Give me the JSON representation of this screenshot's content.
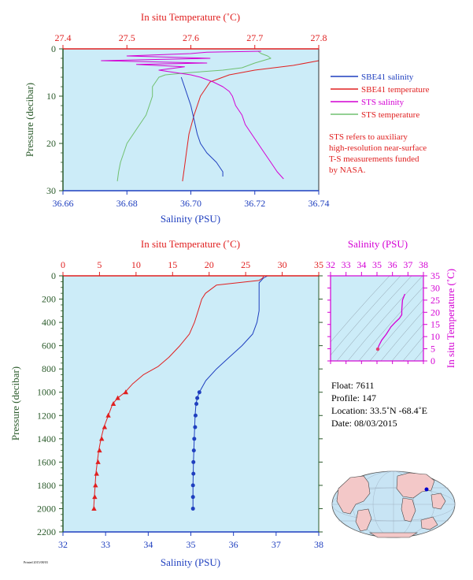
{
  "chart_data": [
    {
      "type": "line",
      "panel": "upper",
      "top_axis": {
        "label": "In situ Temperature (˚C)",
        "range": [
          27.4,
          27.8
        ],
        "ticks": [
          "27.4",
          "27.5",
          "27.6",
          "27.7",
          "27.8"
        ]
      },
      "bottom_axis": {
        "label": "Salinity (PSU)",
        "range": [
          36.66,
          36.74
        ],
        "ticks": [
          "36.66",
          "36.68",
          "36.70",
          "36.72",
          "36.74"
        ]
      },
      "left_axis": {
        "label": "Pressure (decibar)",
        "range": [
          0,
          30
        ],
        "inverted": true,
        "ticks": [
          "0",
          "10",
          "20",
          "30"
        ]
      },
      "legend_placement": "right",
      "series": [
        {
          "name": "SBE41 salinity",
          "color": "#1f3fbf",
          "axis": "salinity",
          "points": [
            [
              36.697,
              6
            ],
            [
              36.698,
              8
            ],
            [
              36.7,
              12
            ],
            [
              36.701,
              15
            ],
            [
              36.702,
              18
            ],
            [
              36.703,
              20
            ],
            [
              36.705,
              22
            ],
            [
              36.708,
              24
            ],
            [
              36.71,
              26
            ],
            [
              36.71,
              27
            ]
          ]
        },
        {
          "name": "SBE41 temperature",
          "color": "#e02020",
          "axis": "temperature",
          "points": [
            [
              27.83,
              2.5
            ],
            [
              27.76,
              3.5
            ],
            [
              27.7,
              4.5
            ],
            [
              27.66,
              5.5
            ],
            [
              27.63,
              7
            ],
            [
              27.615,
              10
            ],
            [
              27.605,
              14
            ],
            [
              27.597,
              18
            ],
            [
              27.593,
              22
            ],
            [
              27.59,
              25
            ],
            [
              27.587,
              28
            ]
          ]
        },
        {
          "name": "STS salinity",
          "color": "#d400d4",
          "axis": "salinity",
          "points": [
            [
              36.722,
              0.5
            ],
            [
              36.705,
              0.7
            ],
            [
              36.7,
              1
            ],
            [
              36.68,
              1.5
            ],
            [
              36.706,
              2
            ],
            [
              36.672,
              2.5
            ],
            [
              36.705,
              3
            ],
            [
              36.683,
              3.3
            ],
            [
              36.698,
              3.8
            ],
            [
              36.69,
              4.5
            ],
            [
              36.695,
              5
            ],
            [
              36.7,
              5.5
            ],
            [
              36.703,
              6
            ],
            [
              36.707,
              7
            ],
            [
              36.71,
              8
            ],
            [
              36.712,
              9
            ],
            [
              36.713,
              10
            ],
            [
              36.714,
              12
            ],
            [
              36.716,
              14
            ],
            [
              36.717,
              16
            ],
            [
              36.719,
              18
            ],
            [
              36.721,
              20
            ],
            [
              36.723,
              22
            ],
            [
              36.725,
              24
            ],
            [
              36.727,
              26
            ],
            [
              36.729,
              27.5
            ]
          ]
        },
        {
          "name": "STS temperature",
          "color": "#70c070",
          "axis": "temperature",
          "points": [
            [
              27.705,
              0.5
            ],
            [
              27.71,
              1
            ],
            [
              27.72,
              1.5
            ],
            [
              27.725,
              2
            ],
            [
              27.7,
              3
            ],
            [
              27.68,
              4
            ],
            [
              27.65,
              4.5
            ],
            [
              27.6,
              5
            ],
            [
              27.56,
              5.5
            ],
            [
              27.55,
              6
            ],
            [
              27.54,
              8
            ],
            [
              27.54,
              10
            ],
            [
              27.535,
              12
            ],
            [
              27.53,
              14
            ],
            [
              27.52,
              16
            ],
            [
              27.51,
              18
            ],
            [
              27.5,
              20
            ],
            [
              27.495,
              22
            ],
            [
              27.49,
              24
            ],
            [
              27.487,
              26
            ],
            [
              27.485,
              28
            ]
          ]
        }
      ],
      "annotation": [
        "STS refers to auxiliary",
        "high-resolution near-surface",
        "T-S measurements funded",
        "by NASA."
      ]
    },
    {
      "type": "line",
      "panel": "lower",
      "top_axis": {
        "label": "In situ Temperature (˚C)",
        "range": [
          0,
          35
        ],
        "ticks": [
          "0",
          "5",
          "10",
          "15",
          "20",
          "25",
          "30",
          "35"
        ]
      },
      "bottom_axis": {
        "label": "Salinity (PSU)",
        "range": [
          32,
          38
        ],
        "ticks": [
          "32",
          "33",
          "34",
          "35",
          "36",
          "37",
          "38"
        ]
      },
      "left_axis": {
        "label": "Pressure (decibar)",
        "range": [
          0,
          2200
        ],
        "inverted": true,
        "ticks": [
          "0",
          "200",
          "400",
          "600",
          "800",
          "1000",
          "1200",
          "1400",
          "1600",
          "1800",
          "2000",
          "2200"
        ]
      },
      "series": [
        {
          "name": "",
          "color": "#e02020",
          "axis": "temperature",
          "points": [
            [
              27.5,
              0
            ],
            [
              27.3,
              20
            ],
            [
              26.8,
              40
            ],
            [
              21,
              80
            ],
            [
              19.5,
              150
            ],
            [
              19,
              200
            ],
            [
              18.5,
              300
            ],
            [
              18,
              400
            ],
            [
              17.3,
              500
            ],
            [
              16,
              600
            ],
            [
              14.5,
              700
            ],
            [
              13,
              780
            ],
            [
              11,
              850
            ],
            [
              9.5,
              930
            ],
            [
              8.5,
              1000
            ],
            [
              7.5,
              1050
            ],
            [
              6.8,
              1100
            ],
            [
              6.2,
              1200
            ],
            [
              5.6,
              1300
            ],
            [
              5.2,
              1400
            ],
            [
              4.9,
              1500
            ],
            [
              4.7,
              1600
            ],
            [
              4.5,
              1700
            ],
            [
              4.4,
              1800
            ],
            [
              4.3,
              1900
            ],
            [
              4.2,
              2000
            ]
          ],
          "markers": [
            [
              8.6,
              1000
            ],
            [
              7.5,
              1050
            ],
            [
              6.9,
              1100
            ],
            [
              6.2,
              1200
            ],
            [
              5.7,
              1300
            ],
            [
              5.3,
              1400
            ],
            [
              5.0,
              1500
            ],
            [
              4.8,
              1600
            ],
            [
              4.6,
              1700
            ],
            [
              4.45,
              1800
            ],
            [
              4.35,
              1900
            ],
            [
              4.25,
              2000
            ]
          ],
          "marker": "triangle"
        },
        {
          "name": "",
          "color": "#1f3fbf",
          "axis": "salinity",
          "points": [
            [
              36.8,
              0
            ],
            [
              36.7,
              20
            ],
            [
              36.6,
              60
            ],
            [
              36.6,
              150
            ],
            [
              36.6,
              300
            ],
            [
              36.55,
              400
            ],
            [
              36.45,
              500
            ],
            [
              36.2,
              600
            ],
            [
              35.9,
              700
            ],
            [
              35.6,
              800
            ],
            [
              35.35,
              900
            ],
            [
              35.2,
              1000
            ],
            [
              35.15,
              1050
            ],
            [
              35.12,
              1100
            ],
            [
              35.1,
              1200
            ],
            [
              35.08,
              1400
            ],
            [
              35.06,
              1600
            ],
            [
              35.05,
              1800
            ],
            [
              35.05,
              2000
            ]
          ],
          "markers": [
            [
              35.2,
              1000
            ],
            [
              35.15,
              1050
            ],
            [
              35.13,
              1100
            ],
            [
              35.11,
              1200
            ],
            [
              35.1,
              1300
            ],
            [
              35.08,
              1400
            ],
            [
              35.07,
              1500
            ],
            [
              35.06,
              1600
            ],
            [
              35.06,
              1700
            ],
            [
              35.05,
              1800
            ],
            [
              35.05,
              1900
            ],
            [
              35.05,
              2000
            ]
          ],
          "marker": "circle"
        }
      ]
    },
    {
      "type": "line",
      "panel": "ts-diagram",
      "top_axis": {
        "label": "Salinity (PSU)",
        "range": [
          32,
          38
        ],
        "ticks": [
          "32",
          "33",
          "34",
          "35",
          "36",
          "37",
          "38"
        ]
      },
      "right_axis": {
        "label": "In situ Temperature (˚C)",
        "range": [
          0,
          35
        ],
        "ticks": [
          "0",
          "5",
          "10",
          "15",
          "20",
          "25",
          "30",
          "35"
        ]
      },
      "series": [
        {
          "name": "",
          "color": "#d400d4",
          "points": [
            [
              35.05,
              4.2
            ],
            [
              35.1,
              6
            ],
            [
              35.3,
              8.5
            ],
            [
              35.6,
              11
            ],
            [
              35.9,
              14
            ],
            [
              36.2,
              16
            ],
            [
              36.45,
              17.5
            ],
            [
              36.6,
              19
            ],
            [
              36.6,
              21
            ],
            [
              36.65,
              25
            ],
            [
              36.8,
              27.5
            ]
          ]
        }
      ]
    },
    {
      "type": "map",
      "panel": "location-globe",
      "marker": {
        "lat": 33.5,
        "lon": -68.4,
        "color": "#0000cc"
      }
    }
  ],
  "info": {
    "float": "Float:  7611",
    "profile": "Profile:  147",
    "location": "Location:  33.5˚N  -68.4˚E",
    "date": "Date:  08/03/2015"
  },
  "footer": "Printed 2015/08/03",
  "colors": {
    "plot_bg": "#ccecf8",
    "temperature": "#e02020",
    "salinity_axis": "#1f3fbf",
    "pressure_axis": "#2a5a2a",
    "ts_axis": "#d400d4"
  }
}
